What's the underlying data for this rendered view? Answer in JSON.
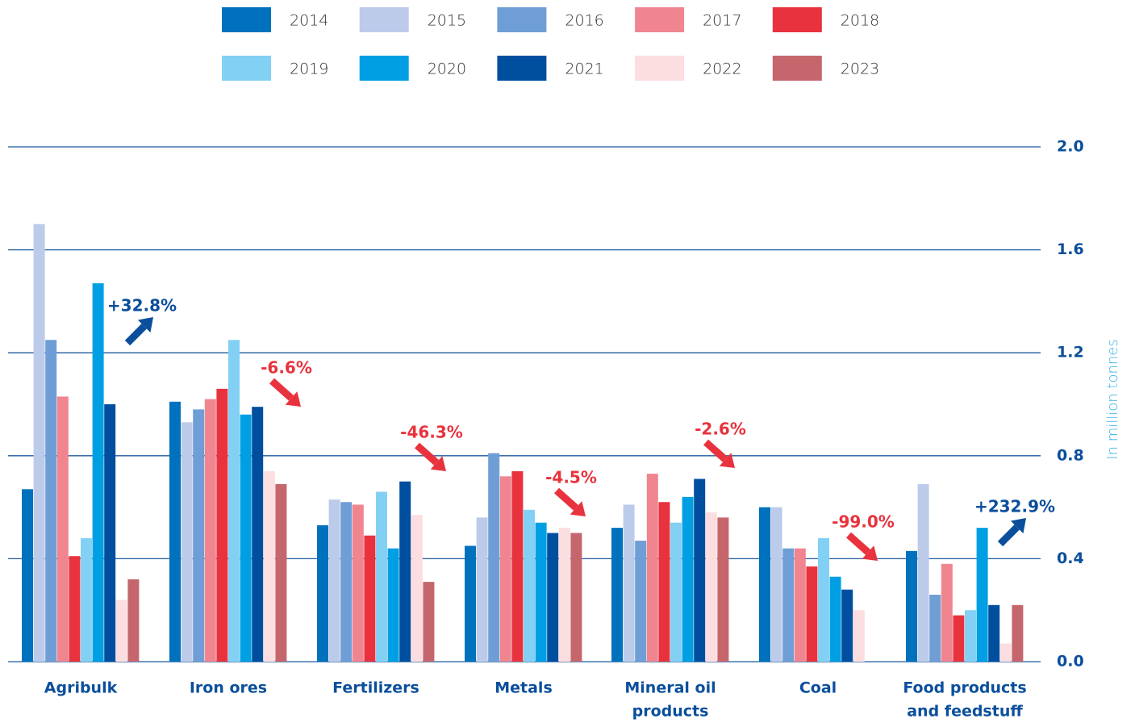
{
  "chart_data": {
    "type": "bar",
    "y_axis_label": "In million tonnes",
    "categories": [
      [
        "Agribulk"
      ],
      [
        "Iron ores"
      ],
      [
        "Fertilizers"
      ],
      [
        "Metals"
      ],
      [
        "Mineral oil",
        "products"
      ],
      [
        "Coal"
      ],
      [
        "Food products",
        "and feedstuff"
      ]
    ],
    "series": [
      {
        "name": "2014",
        "color": "#0071bc",
        "values": [
          0.67,
          1.01,
          0.53,
          0.45,
          0.52,
          0.6,
          0.43
        ]
      },
      {
        "name": "2015",
        "color": "#bccbea",
        "values": [
          1.7,
          0.93,
          0.63,
          0.56,
          0.61,
          0.6,
          0.69
        ]
      },
      {
        "name": "2016",
        "color": "#6f9ed6",
        "values": [
          1.25,
          0.98,
          0.62,
          0.81,
          0.47,
          0.44,
          0.26
        ]
      },
      {
        "name": "2017",
        "color": "#f08590",
        "values": [
          1.03,
          1.02,
          0.61,
          0.72,
          0.73,
          0.44,
          0.38
        ]
      },
      {
        "name": "2018",
        "color": "#e8333e",
        "values": [
          0.41,
          1.06,
          0.49,
          0.74,
          0.62,
          0.37,
          0.18
        ]
      },
      {
        "name": "2019",
        "color": "#83d0f5",
        "values": [
          0.48,
          1.25,
          0.66,
          0.59,
          0.54,
          0.48,
          0.2
        ]
      },
      {
        "name": "2020",
        "color": "#009fe3",
        "values": [
          1.47,
          0.96,
          0.44,
          0.54,
          0.64,
          0.33,
          0.52
        ]
      },
      {
        "name": "2021",
        "color": "#004f9f",
        "values": [
          1.0,
          0.99,
          0.7,
          0.5,
          0.71,
          0.28,
          0.22
        ]
      },
      {
        "name": "2022",
        "color": "#fcdde0",
        "values": [
          0.24,
          0.74,
          0.57,
          0.52,
          0.58,
          0.2,
          0.07
        ]
      },
      {
        "name": "2023",
        "color": "#c5666c",
        "values": [
          0.32,
          0.69,
          0.31,
          0.5,
          0.56,
          null,
          0.22
        ]
      }
    ],
    "annotations": [
      "+32.8%",
      "-6.6%",
      "-46.3%",
      "-4.5%",
      "-2.6%",
      "-99.0%",
      "+232.9%"
    ],
    "ylim": [
      0,
      2
    ],
    "yticks": [
      {
        "value": 0,
        "label": "0.0"
      },
      0.4,
      0.8,
      1.2,
      1.6,
      {
        "value": 2,
        "label": "2.0"
      }
    ],
    "grid": true
  }
}
